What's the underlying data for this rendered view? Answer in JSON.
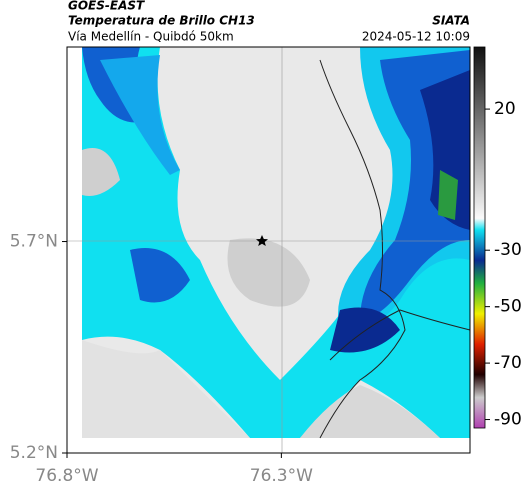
{
  "header": {
    "title": "GOES-EAST",
    "subtitle": "Temperatura de Brillo CH13",
    "route": "Vía Medellín - Quibdó 50km",
    "source": "SIATA",
    "datetime": "2024-05-12 10:09"
  },
  "map": {
    "xlim": [
      -76.8,
      -75.86
    ],
    "ylim": [
      5.2,
      6.16
    ],
    "xticks": [
      {
        "value": -76.8,
        "label": "76.8°W"
      },
      {
        "value": -76.3,
        "label": "76.3°W"
      }
    ],
    "yticks": [
      {
        "value": 5.7,
        "label": "5.7°N"
      },
      {
        "value": 5.2,
        "label": "5.2°N"
      }
    ]
  },
  "colorbar": {
    "lim": [
      42,
      -93
    ],
    "ticks": [
      20,
      -30,
      -50,
      -70,
      -90
    ]
  }
}
